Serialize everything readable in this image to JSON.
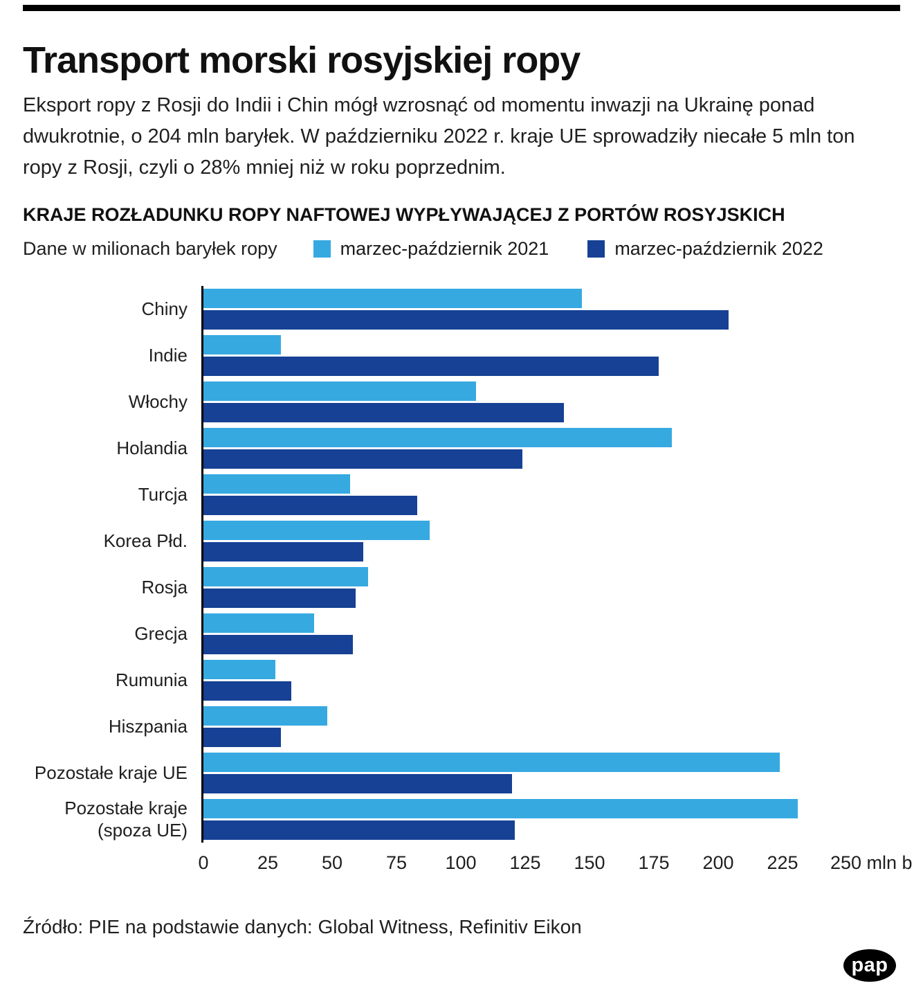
{
  "header": {
    "title": "Transport morski rosyjskiej ropy",
    "intro": "Eksport ropy z Rosji do Indii i Chin mógł wzrosnąć od momentu inwazji na Ukrainę ponad dwukrotnie, o 204 mln baryłek. W październiku 2022 r. kraje UE sprowadziły niecałe 5 mln ton ropy z Rosji, czyli o 28% mniej niż w roku poprzednim."
  },
  "chart": {
    "heading": "KRAJE ROZŁADUNKU ROPY NAFTOWEJ WYPŁYWAJĄCEJ Z PORTÓW ROSYJSKICH",
    "unit_note": "Dane w milionach baryłek ropy",
    "legend": [
      {
        "label": "marzec-październik 2021",
        "color": "#36a9e1"
      },
      {
        "label": "marzec-październik 2022",
        "color": "#164194"
      }
    ]
  },
  "chart_data": {
    "type": "bar",
    "orientation": "horizontal",
    "title": "KRAJE ROZŁADUNKU ROPY NAFTOWEJ WYPŁYWAJĄCEJ Z PORTÓW ROSYJSKICH",
    "unit": "mln baryłek ropy",
    "categories": [
      "Chiny",
      "Indie",
      "Włochy",
      "Holandia",
      "Turcja",
      "Korea Płd.",
      "Rosja",
      "Grecja",
      "Rumunia",
      "Hiszpania",
      "Pozostałe kraje UE",
      "Pozostałe kraje (spoza UE)"
    ],
    "series": [
      {
        "name": "marzec-październik 2021",
        "color": "#36a9e1",
        "values": [
          147,
          30,
          106,
          182,
          57,
          88,
          64,
          43,
          28,
          48,
          224,
          231
        ]
      },
      {
        "name": "marzec-październik 2022",
        "color": "#164194",
        "values": [
          204,
          177,
          140,
          124,
          83,
          62,
          59,
          58,
          34,
          30,
          120,
          121
        ]
      }
    ],
    "xlim": [
      0,
      250
    ],
    "xticks": [
      0,
      25,
      50,
      75,
      100,
      125,
      150,
      175,
      200,
      225,
      250
    ],
    "x_axis_suffix": "mln b",
    "grid": false,
    "legend_position": "top"
  },
  "footer": {
    "source": "Źródło: PIE na podstawie danych: Global Witness, Refinitiv Eikon",
    "logo_text": "pap"
  }
}
